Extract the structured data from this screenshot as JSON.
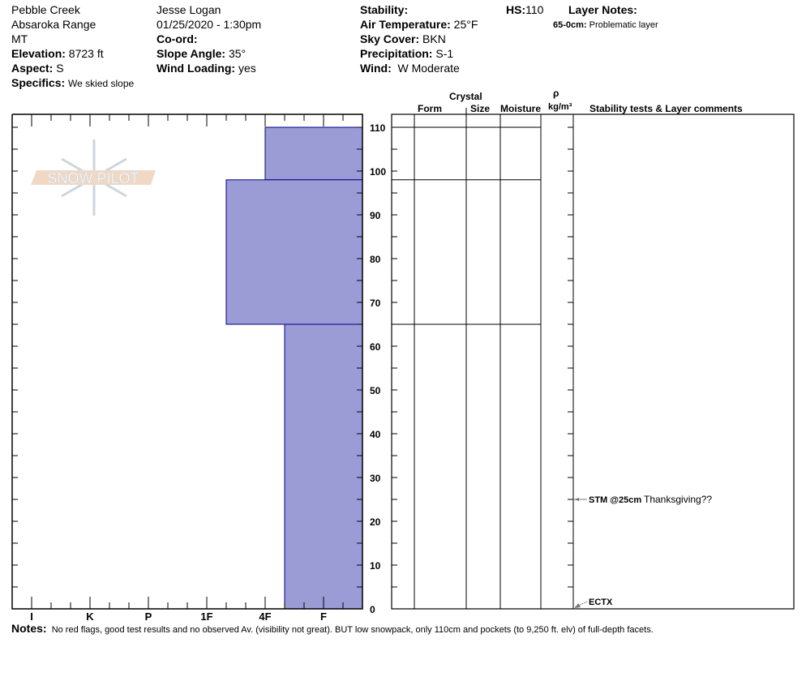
{
  "header": {
    "location": "Pebble Creek",
    "range": "Absaroka Range",
    "state": "MT",
    "elevation_label": "Elevation:",
    "elevation": "8723 ft",
    "aspect_label": "Aspect:",
    "aspect": "S",
    "specifics_label": "Specifics:",
    "specifics": "We skied slope",
    "observer": "Jesse Logan",
    "datetime": "01/25/2020 - 1:30pm",
    "coord_label": "Co-ord:",
    "slope_label": "Slope Angle:",
    "slope": "35°",
    "wind_loading_label": "Wind Loading:",
    "wind_loading": "yes",
    "stability_label": "Stability:",
    "air_temp_label": "Air Temperature:",
    "air_temp": "25°F",
    "sky_label": "Sky Cover:",
    "sky": "BKN",
    "precip_label": "Precipitation:",
    "precip": "S-1",
    "wind_label": "Wind:",
    "wind": "W Moderate",
    "hs_label": "HS:",
    "hs": "110",
    "layer_notes_label": "Layer Notes:",
    "layer_note_range": "65-0cm:",
    "layer_note_text": "Problematic layer"
  },
  "table_headers": {
    "crystal": "Crystal",
    "form": "Form",
    "size": "Size",
    "moisture": "Moisture",
    "rho": "ρ",
    "density_unit": "kg/m³",
    "comments": "Stability tests & Layer comments"
  },
  "logo_text": "SNOW PILOT",
  "hardness_labels": [
    "I",
    "K",
    "P",
    "1F",
    "4F",
    "F"
  ],
  "depth_labels": [
    "110",
    "100",
    "90",
    "80",
    "70",
    "60",
    "50",
    "40",
    "30",
    "20",
    "10",
    "0"
  ],
  "layers": [
    {
      "top": 110,
      "bottom": 98,
      "hardness": "4F"
    },
    {
      "top": 98,
      "bottom": 65,
      "hardness": "1F-"
    },
    {
      "top": 65,
      "bottom": 0,
      "hardness": "4F-"
    }
  ],
  "tests": [
    {
      "depth": 25,
      "code": "STM @25cm",
      "comment": "Thanksgiving??"
    },
    {
      "depth": 0,
      "code": "ECTX",
      "comment": ""
    }
  ],
  "layer_fill": "#9b9bd5",
  "layer_stroke": "#00008b",
  "notes_label": "Notes:",
  "notes": "No red flags, good test results and no observed Av. (visibility not great). BUT low snowpack, only 110cm and pockets (to 9,250 ft. elv) of full-depth facets."
}
